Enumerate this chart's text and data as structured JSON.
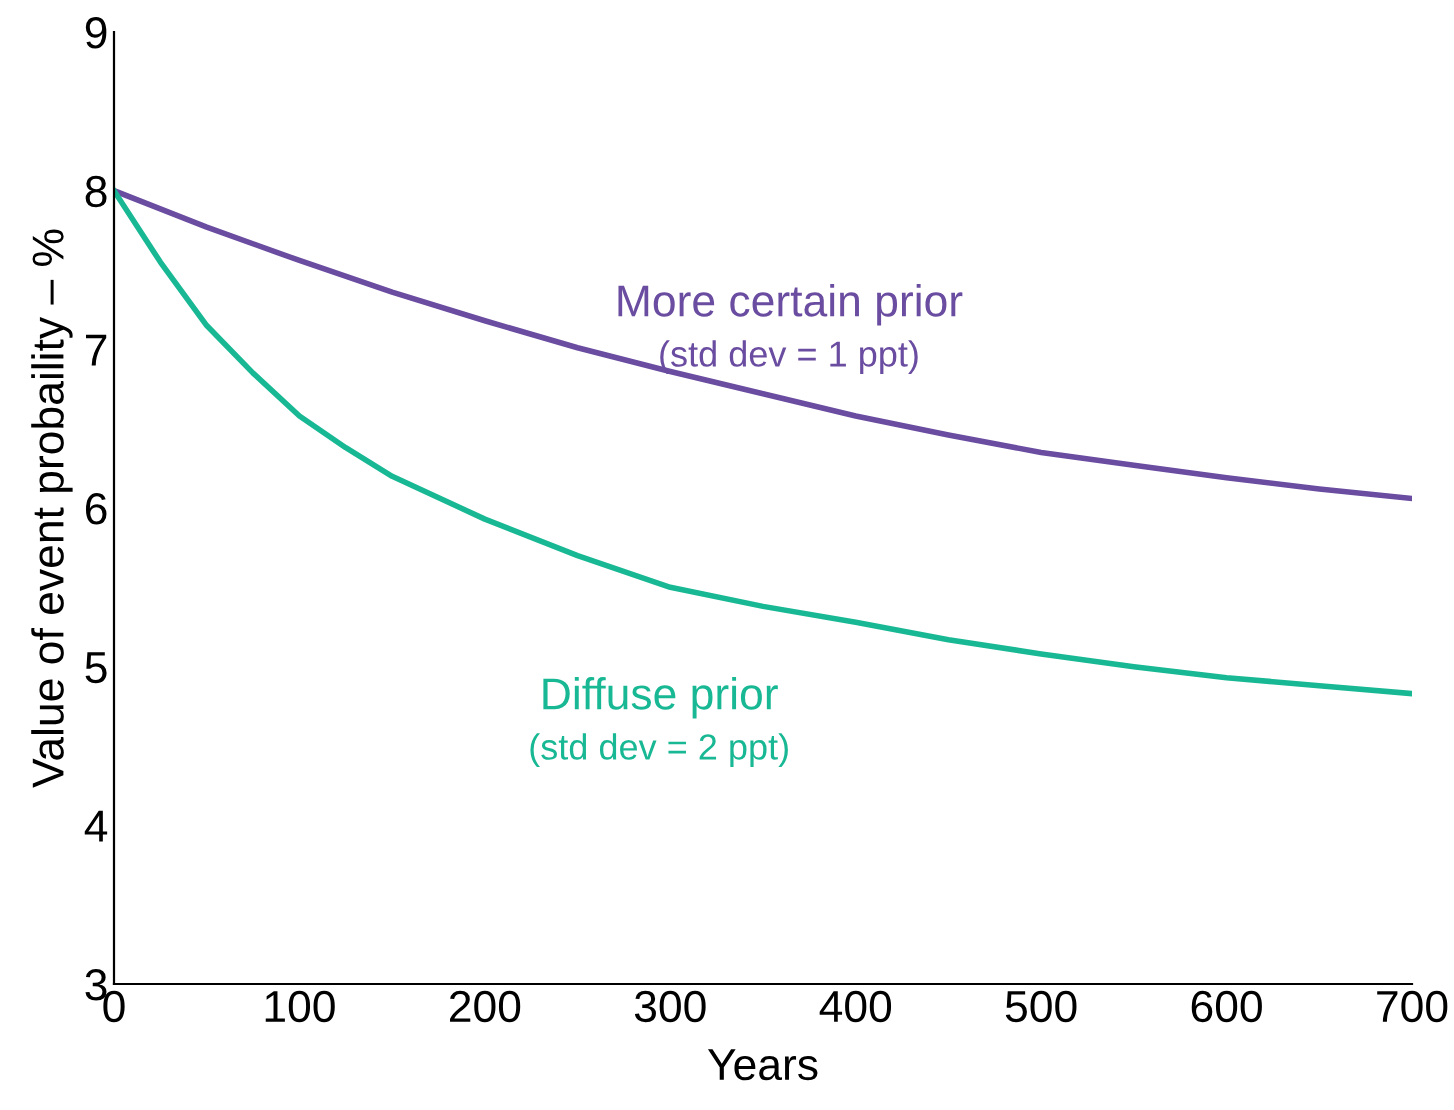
{
  "chart_data": {
    "type": "line",
    "xlabel": "Years",
    "ylabel": "Value of event probaility – %",
    "xlim": [
      0,
      700
    ],
    "ylim": [
      3,
      9
    ],
    "xticks": [
      0,
      100,
      200,
      300,
      400,
      500,
      600,
      700
    ],
    "yticks": [
      3,
      4,
      5,
      6,
      7,
      8,
      9
    ],
    "grid": false,
    "legend": false,
    "series": [
      {
        "name": "More certain prior\n(std dev = 1 ppt)",
        "color": "#6a4ca0",
        "x": [
          0,
          50,
          100,
          150,
          200,
          250,
          300,
          350,
          400,
          450,
          500,
          550,
          600,
          650,
          700
        ],
        "values": [
          8.0,
          7.77,
          7.56,
          7.36,
          7.18,
          7.01,
          6.86,
          6.72,
          6.58,
          6.46,
          6.35,
          6.27,
          6.19,
          6.12,
          6.06
        ]
      },
      {
        "name": "Diffuse prior\n(std dev = 2 ppt)",
        "color": "#19b894",
        "x": [
          0,
          25,
          50,
          75,
          100,
          125,
          150,
          200,
          250,
          300,
          350,
          400,
          450,
          500,
          550,
          600,
          650,
          700
        ],
        "values": [
          8.0,
          7.55,
          7.15,
          6.85,
          6.58,
          6.38,
          6.2,
          5.93,
          5.7,
          5.5,
          5.38,
          5.28,
          5.17,
          5.08,
          5.0,
          4.93,
          4.88,
          4.83
        ]
      }
    ]
  }
}
